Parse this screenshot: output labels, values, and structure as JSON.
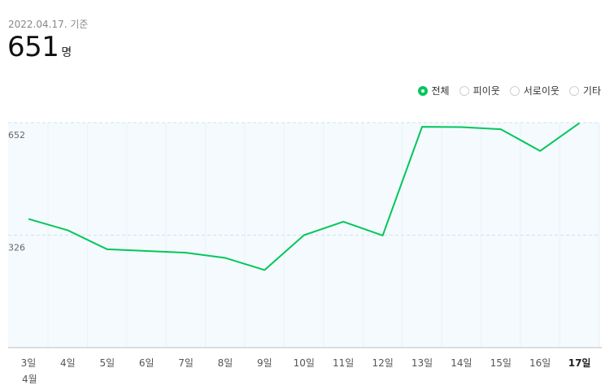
{
  "header": {
    "date": "2022.04.17. 기준",
    "count": "651",
    "unit": "명"
  },
  "filters": [
    {
      "label": "전체",
      "selected": true
    },
    {
      "label": "피이웃",
      "selected": false
    },
    {
      "label": "서로이웃",
      "selected": false
    },
    {
      "label": "기타",
      "selected": false
    }
  ],
  "colors": {
    "line": "#03c75a",
    "plot_bg": "#f4fafd",
    "grid": "#cfe3ea"
  },
  "chart_data": {
    "type": "line",
    "categories": [
      "3일",
      "4일",
      "5일",
      "6일",
      "7일",
      "8일",
      "9일",
      "10일",
      "11일",
      "12일",
      "13일",
      "14일",
      "15일",
      "16일",
      "17일"
    ],
    "month_label": "4월",
    "series": [
      {
        "values": [
          373,
          340,
          285,
          280,
          275,
          260,
          225,
          326,
          365,
          325,
          640,
          639,
          633,
          570,
          651
        ]
      }
    ],
    "yticks": [
      652,
      326
    ],
    "ylim": [
      0,
      652
    ]
  }
}
